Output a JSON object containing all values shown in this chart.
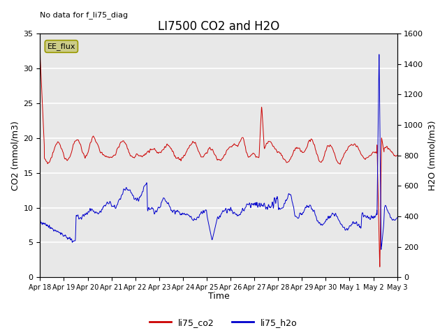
{
  "title": "LI7500 CO2 and H2O",
  "top_left_text": "No data for f_li75_diag",
  "xlabel": "Time",
  "ylabel_left": "CO2 (mmol/m3)",
  "ylabel_right": "H2O (mmol/m3)",
  "ylim_left": [
    0,
    35
  ],
  "ylim_right": [
    0,
    1600
  ],
  "background_color": "#ffffff",
  "plot_bg_color": "#e8e8e8",
  "grid_color": "#ffffff",
  "co2_color": "#cc0000",
  "h2o_color": "#0000cc",
  "legend_box_facecolor": "#cccc88",
  "legend_box_edgecolor": "#999900",
  "legend_box_text": "EE_flux",
  "x_tick_labels": [
    "Apr 18",
    "Apr 19",
    "Apr 20",
    "Apr 21",
    "Apr 22",
    "Apr 23",
    "Apr 24",
    "Apr 25",
    "Apr 26",
    "Apr 27",
    "Apr 28",
    "Apr 29",
    "Apr 30",
    "May 1",
    "May 2",
    "May 3"
  ],
  "n_points": 3000,
  "seed": 7
}
